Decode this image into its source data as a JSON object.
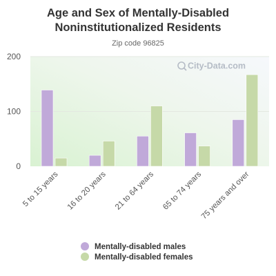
{
  "chart_data": {
    "type": "bar",
    "title_line1": "Age and Sex of Mentally-Disabled",
    "title_line2": "Noninstitutionalized Residents",
    "subtitle": "Zip code 96825",
    "xlabel": "",
    "ylabel": "",
    "ylim": [
      0,
      200
    ],
    "yticks": [
      "0",
      "100",
      "200"
    ],
    "categories": [
      "5 to 15 years",
      "16 to 20 years",
      "21 to 64 years",
      "65 to 74 years",
      "75 years and over"
    ],
    "series": [
      {
        "name": "Mentally-disabled males",
        "color": "#c0a9d9",
        "values": [
          139,
          20,
          55,
          61,
          85
        ]
      },
      {
        "name": "Mentally-disabled females",
        "color": "#c6d9a8",
        "values": [
          15,
          46,
          110,
          37,
          167
        ]
      }
    ],
    "grid": true,
    "legend_position": "bottom",
    "watermark": "City-Data.com"
  }
}
